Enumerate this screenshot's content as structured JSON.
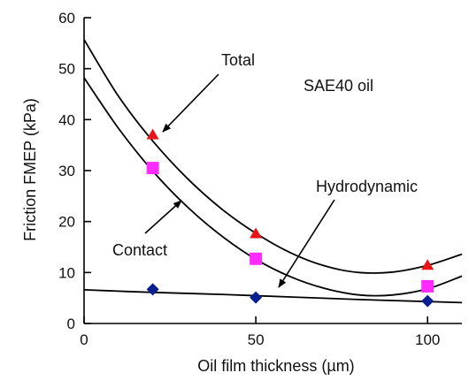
{
  "chart_data": {
    "type": "scatter",
    "title": "",
    "xlabel": "Oil film thickness (µm)",
    "ylabel": "Friction FMEP (kPa)",
    "xlim": [
      0,
      110
    ],
    "ylim": [
      0,
      60
    ],
    "x_ticks": [
      "0",
      "50",
      "100"
    ],
    "y_ticks": [
      "0",
      "10",
      "20",
      "30",
      "40",
      "50",
      "60"
    ],
    "grid": false,
    "legend": "none",
    "series": [
      {
        "name": "Total",
        "marker": "triangle",
        "color": "#e8141a",
        "x": [
          20,
          50,
          100
        ],
        "y": [
          37,
          17.6,
          11.4
        ],
        "fit_x": [
          0,
          10,
          20,
          30,
          40,
          50,
          60,
          70,
          80,
          90,
          100,
          110
        ],
        "fit_y": [
          55.7,
          44.6,
          35.8,
          28.5,
          22.5,
          17.7,
          13.9,
          11.3,
          10.0,
          10.1,
          11.4,
          13.6
        ]
      },
      {
        "name": "Contact",
        "marker": "square",
        "color": "#ff2bff",
        "x": [
          20,
          50,
          100
        ],
        "y": [
          30.5,
          12.7,
          7.3
        ],
        "fit_x": [
          0,
          10,
          20,
          30,
          40,
          50,
          60,
          70,
          80,
          90,
          100,
          110
        ],
        "fit_y": [
          48.2,
          38.3,
          29.9,
          22.9,
          17.2,
          12.6,
          9.2,
          6.9,
          5.6,
          5.6,
          6.8,
          9.3
        ]
      },
      {
        "name": "Hydrodynamic",
        "marker": "diamond",
        "color": "#0a1f8f",
        "x": [
          20,
          50,
          100
        ],
        "y": [
          6.7,
          5.1,
          4.4
        ],
        "fit_x": [
          0,
          20,
          40,
          60,
          80,
          100,
          110
        ],
        "fit_y": [
          6.6,
          6.1,
          5.7,
          5.2,
          4.7,
          4.3,
          4.1
        ]
      }
    ],
    "annotations": {
      "total": "Total",
      "contact": "Contact",
      "hydrodynamic": "Hydrodynamic",
      "oil": "SAE40 oil"
    }
  }
}
